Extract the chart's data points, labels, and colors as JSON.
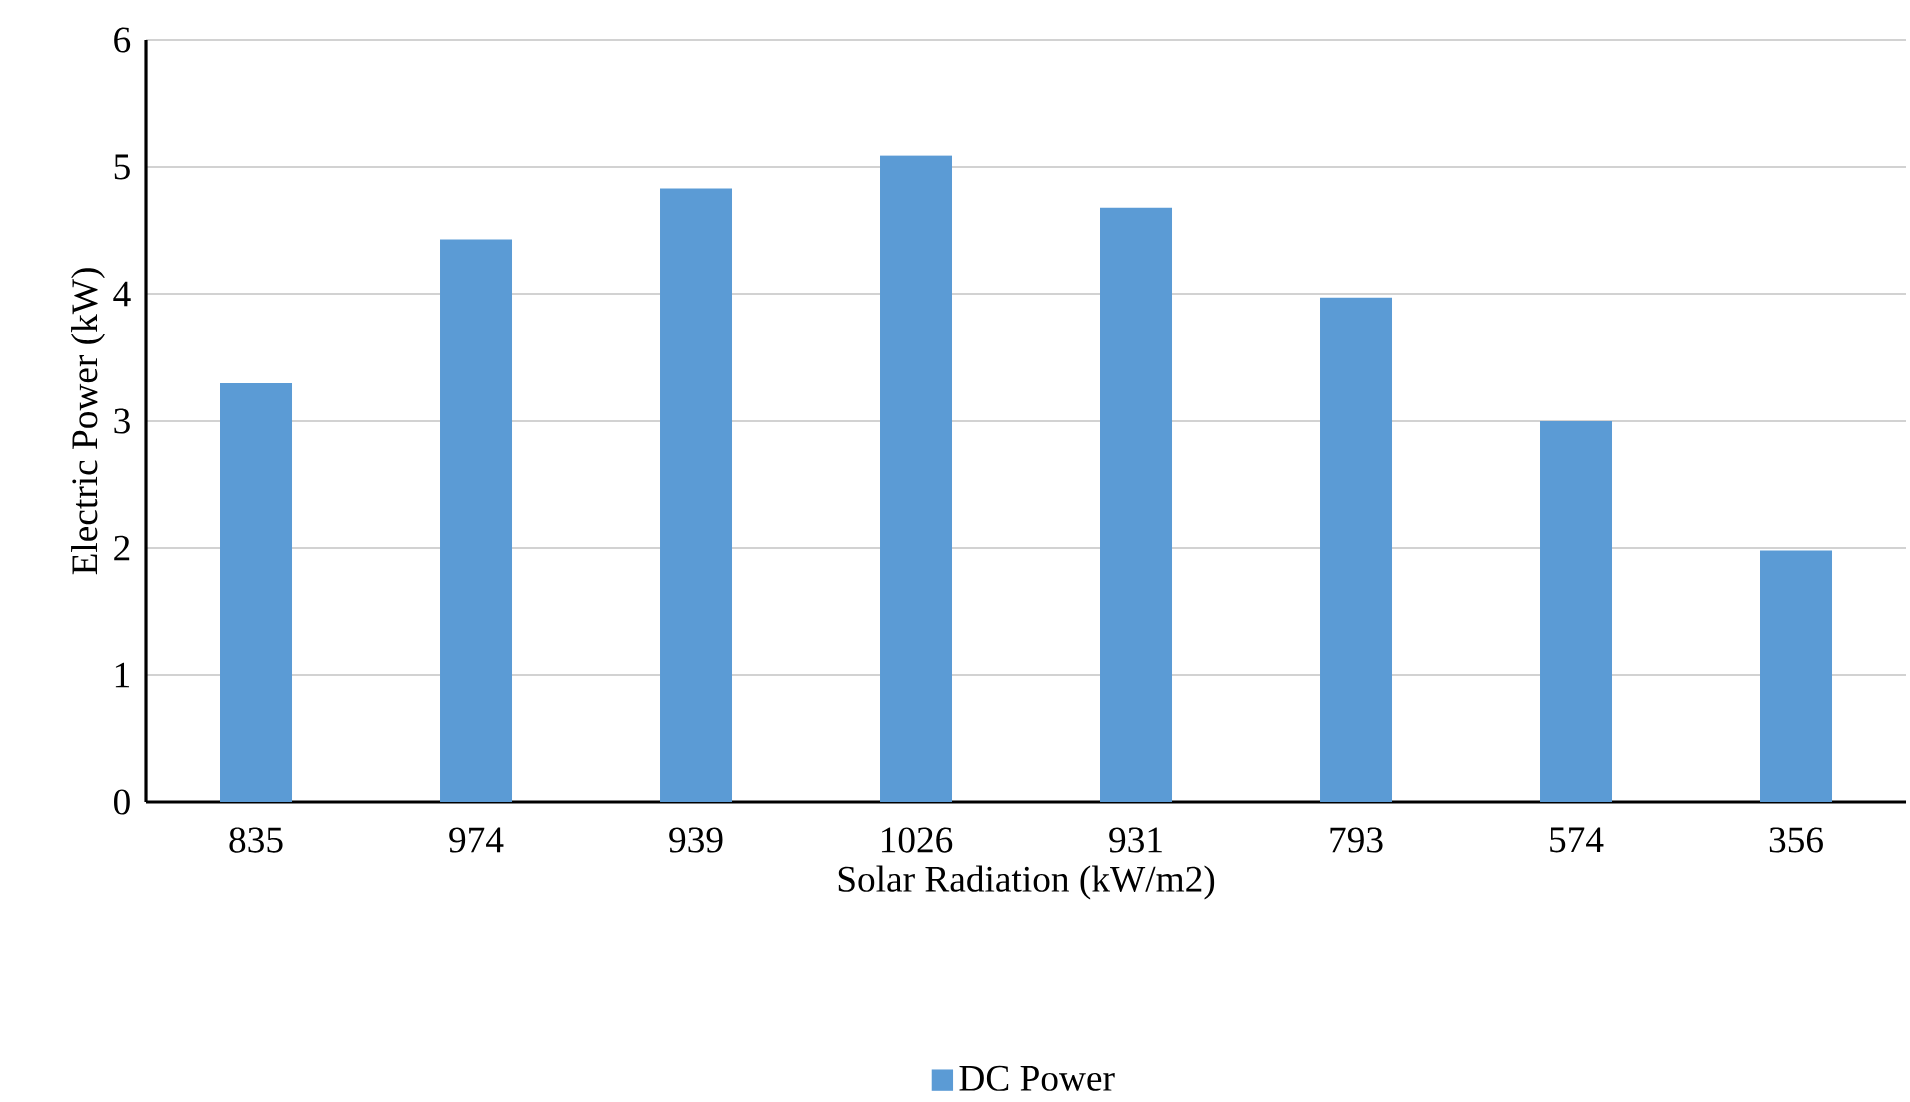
{
  "chart_data": {
    "type": "bar",
    "xlabel": "Solar Radiation (kW/m2)",
    "ylabel": "Electric Power (kW)",
    "categories": [
      "835",
      "974",
      "939",
      "1026",
      "931",
      "793",
      "574",
      "356"
    ],
    "series": [
      {
        "name": "DC Power",
        "color": "#5b9bd5",
        "values": [
          3.3,
          4.43,
          4.83,
          5.09,
          4.68,
          3.97,
          3.0,
          1.98
        ]
      }
    ],
    "ylim": [
      0,
      6
    ],
    "yticks": [
      0,
      1,
      2,
      3,
      4,
      5,
      6
    ],
    "grid": "y",
    "legend": "bottom"
  }
}
